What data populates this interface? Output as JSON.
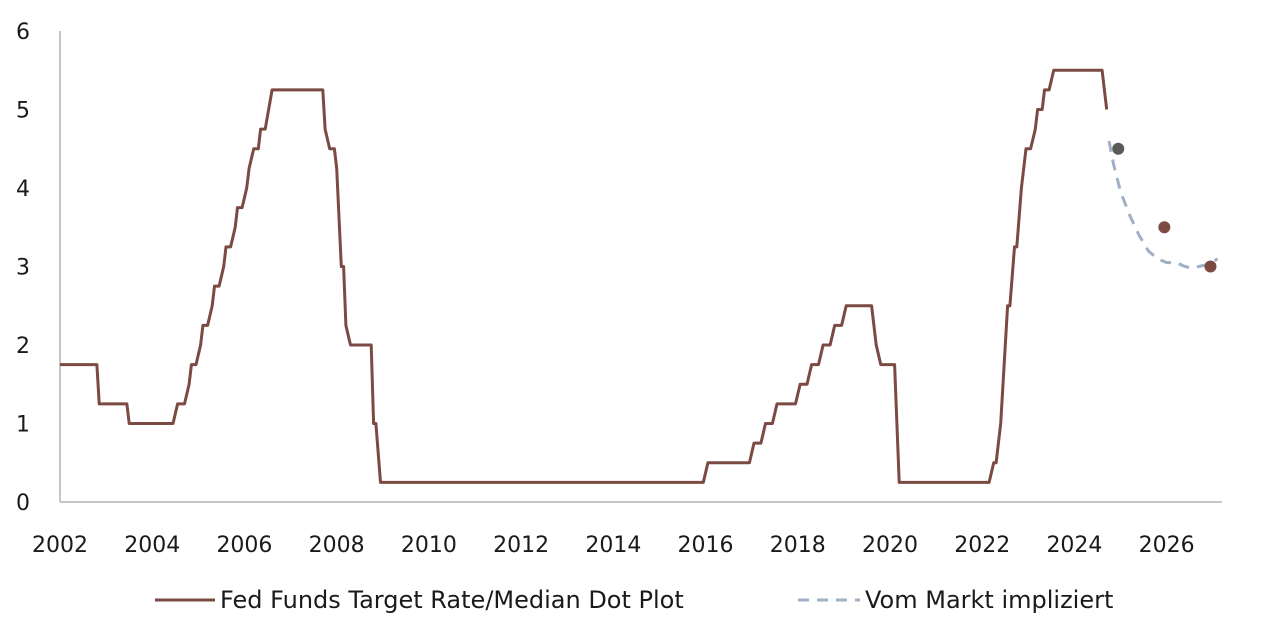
{
  "chart_data": {
    "type": "line",
    "title": "",
    "xlabel": "",
    "ylabel": "",
    "xlim": [
      2002,
      2027.2
    ],
    "ylim": [
      0,
      6
    ],
    "grid": false,
    "legend_position": "bottom",
    "x_ticks": [
      "2002",
      "2004",
      "2006",
      "2008",
      "2010",
      "2012",
      "2014",
      "2016",
      "2018",
      "2020",
      "2022",
      "2024",
      "2026"
    ],
    "y_ticks": [
      "0",
      "1",
      "2",
      "3",
      "4",
      "5",
      "6"
    ],
    "series": [
      {
        "name": "Fed Funds Target Rate/Median Dot Plot",
        "color": "#7b4a42",
        "style": "solid",
        "points": [
          [
            2002.0,
            1.75
          ],
          [
            2002.8,
            1.75
          ],
          [
            2002.85,
            1.25
          ],
          [
            2003.45,
            1.25
          ],
          [
            2003.5,
            1.0
          ],
          [
            2004.45,
            1.0
          ],
          [
            2004.55,
            1.25
          ],
          [
            2004.7,
            1.25
          ],
          [
            2004.8,
            1.5
          ],
          [
            2004.85,
            1.75
          ],
          [
            2004.95,
            1.75
          ],
          [
            2005.05,
            2.0
          ],
          [
            2005.1,
            2.25
          ],
          [
            2005.2,
            2.25
          ],
          [
            2005.3,
            2.5
          ],
          [
            2005.35,
            2.75
          ],
          [
            2005.45,
            2.75
          ],
          [
            2005.55,
            3.0
          ],
          [
            2005.6,
            3.25
          ],
          [
            2005.7,
            3.25
          ],
          [
            2005.8,
            3.5
          ],
          [
            2005.85,
            3.75
          ],
          [
            2005.95,
            3.75
          ],
          [
            2006.05,
            4.0
          ],
          [
            2006.1,
            4.25
          ],
          [
            2006.2,
            4.5
          ],
          [
            2006.3,
            4.5
          ],
          [
            2006.35,
            4.75
          ],
          [
            2006.45,
            4.75
          ],
          [
            2006.6,
            5.25
          ],
          [
            2007.7,
            5.25
          ],
          [
            2007.75,
            4.75
          ],
          [
            2007.85,
            4.5
          ],
          [
            2007.95,
            4.5
          ],
          [
            2008.0,
            4.25
          ],
          [
            2008.1,
            3.0
          ],
          [
            2008.15,
            3.0
          ],
          [
            2008.2,
            2.25
          ],
          [
            2008.3,
            2.0
          ],
          [
            2008.75,
            2.0
          ],
          [
            2008.8,
            1.0
          ],
          [
            2008.85,
            1.0
          ],
          [
            2008.95,
            0.25
          ],
          [
            2015.95,
            0.25
          ],
          [
            2016.05,
            0.5
          ],
          [
            2016.95,
            0.5
          ],
          [
            2017.05,
            0.75
          ],
          [
            2017.2,
            0.75
          ],
          [
            2017.3,
            1.0
          ],
          [
            2017.45,
            1.0
          ],
          [
            2017.55,
            1.25
          ],
          [
            2017.95,
            1.25
          ],
          [
            2018.05,
            1.5
          ],
          [
            2018.2,
            1.5
          ],
          [
            2018.3,
            1.75
          ],
          [
            2018.45,
            1.75
          ],
          [
            2018.55,
            2.0
          ],
          [
            2018.7,
            2.0
          ],
          [
            2018.8,
            2.25
          ],
          [
            2018.95,
            2.25
          ],
          [
            2019.05,
            2.5
          ],
          [
            2019.6,
            2.5
          ],
          [
            2019.65,
            2.25
          ],
          [
            2019.7,
            2.0
          ],
          [
            2019.8,
            1.75
          ],
          [
            2020.1,
            1.75
          ],
          [
            2020.15,
            1.0
          ],
          [
            2020.2,
            0.25
          ],
          [
            2022.15,
            0.25
          ],
          [
            2022.25,
            0.5
          ],
          [
            2022.3,
            0.5
          ],
          [
            2022.4,
            1.0
          ],
          [
            2022.5,
            2.0
          ],
          [
            2022.55,
            2.5
          ],
          [
            2022.6,
            2.5
          ],
          [
            2022.7,
            3.25
          ],
          [
            2022.75,
            3.25
          ],
          [
            2022.85,
            4.0
          ],
          [
            2022.9,
            4.25
          ],
          [
            2022.95,
            4.5
          ],
          [
            2023.05,
            4.5
          ],
          [
            2023.15,
            4.75
          ],
          [
            2023.2,
            5.0
          ],
          [
            2023.3,
            5.0
          ],
          [
            2023.35,
            5.25
          ],
          [
            2023.45,
            5.25
          ],
          [
            2023.55,
            5.5
          ],
          [
            2024.6,
            5.5
          ],
          [
            2024.7,
            5.0
          ]
        ]
      },
      {
        "name": "Vom Markt impliziert",
        "color": "#9fb0c6",
        "style": "dashed",
        "points": [
          [
            2024.75,
            4.6
          ],
          [
            2024.85,
            4.3
          ],
          [
            2025.0,
            3.95
          ],
          [
            2025.2,
            3.65
          ],
          [
            2025.4,
            3.4
          ],
          [
            2025.6,
            3.2
          ],
          [
            2025.8,
            3.1
          ],
          [
            2026.0,
            3.05
          ],
          [
            2026.2,
            3.05
          ],
          [
            2026.4,
            3.0
          ],
          [
            2026.55,
            2.98
          ],
          [
            2026.7,
            3.0
          ],
          [
            2026.85,
            3.02
          ],
          [
            2027.0,
            3.05
          ],
          [
            2027.1,
            3.1
          ]
        ]
      }
    ],
    "dots": [
      {
        "x": 2024.95,
        "y": 4.5,
        "color": "#5a5a5a"
      },
      {
        "x": 2025.95,
        "y": 3.5,
        "color": "#7b4a42"
      },
      {
        "x": 2026.95,
        "y": 3.0,
        "color": "#7b4a42"
      }
    ]
  }
}
